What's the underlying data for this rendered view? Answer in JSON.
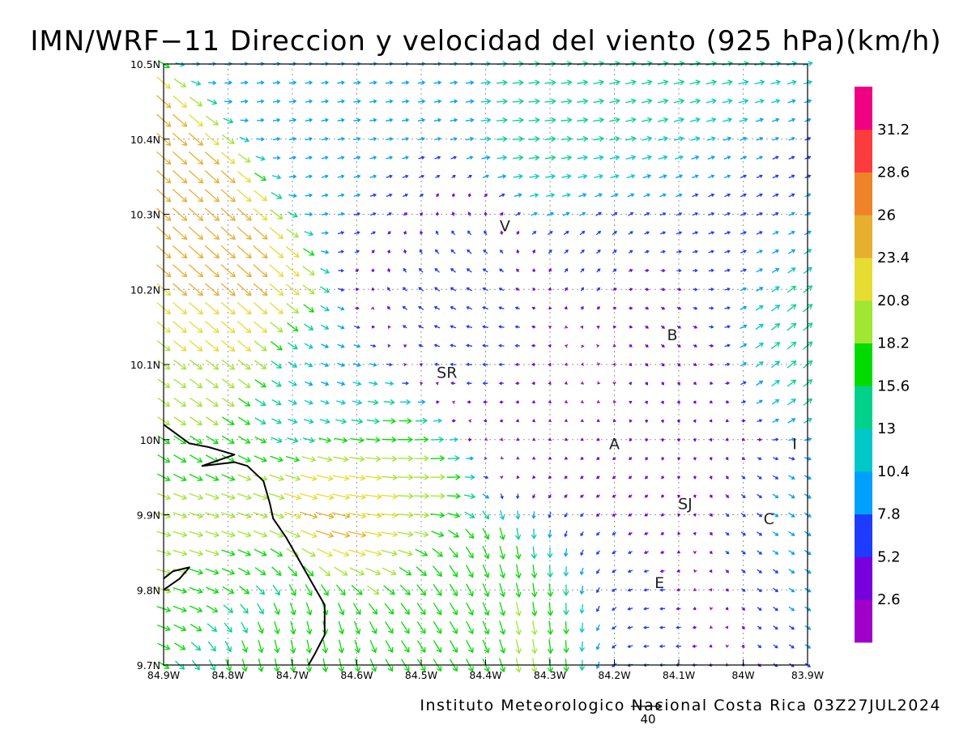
{
  "title": "IMN/WRF−11 Direccion y velocidad del viento (925 hPa)(km/h)",
  "credit": "Instituto Meteorologico Nacional Costa Rica  03Z27JUL2024",
  "reference_vector_label": "40",
  "axes": {
    "lon": [
      -84.9,
      -83.9
    ],
    "lat": [
      9.7,
      10.5
    ],
    "x_tick_values": [
      -84.9,
      -84.8,
      -84.7,
      -84.6,
      -84.5,
      -84.4,
      -84.3,
      -84.2,
      -84.1,
      -84.0,
      -83.9
    ],
    "x_tick_labels": [
      "84.9W",
      "84.8W",
      "84.7W",
      "84.6W",
      "84.5W",
      "84.4W",
      "84.3W",
      "84.2W",
      "84.1W",
      "84W",
      "83.9W"
    ],
    "y_tick_values": [
      10.5,
      10.4,
      10.3,
      10.2,
      10.1,
      10.0,
      9.9,
      9.8,
      9.7
    ],
    "y_tick_labels": [
      "10.5N",
      "10.4N",
      "10.3N",
      "10.2N",
      "10.1N",
      "10N",
      "9.9N",
      "9.8N",
      "9.7N"
    ],
    "grid": true
  },
  "colorbar": {
    "colors": [
      "#a000c8",
      "#7800dc",
      "#1e3cff",
      "#00a0ff",
      "#00c8c8",
      "#00d28c",
      "#00dc00",
      "#a0e632",
      "#e6dc32",
      "#e6af2d",
      "#f08228",
      "#fa3c3c",
      "#f00082"
    ],
    "labels": [
      "2.6",
      "5.2",
      "7.8",
      "10.4",
      "13",
      "15.6",
      "18.2",
      "20.8",
      "23.4",
      "26",
      "28.6",
      "31.2"
    ]
  },
  "places": [
    {
      "label": "V",
      "lon": -84.37,
      "lat": 10.285
    },
    {
      "label": "SR",
      "lon": -84.46,
      "lat": 10.09
    },
    {
      "label": "B",
      "lon": -84.11,
      "lat": 10.14
    },
    {
      "label": "A",
      "lon": -84.2,
      "lat": 9.995
    },
    {
      "label": "I",
      "lon": -83.92,
      "lat": 9.995
    },
    {
      "label": "SJ",
      "lon": -84.09,
      "lat": 9.915
    },
    {
      "label": "C",
      "lon": -83.96,
      "lat": 9.895
    },
    {
      "label": "E",
      "lon": -84.13,
      "lat": 9.81
    }
  ],
  "coastline": [
    [
      [
        -84.9,
        10.02
      ],
      [
        -84.86,
        9.995
      ],
      [
        -84.83,
        9.99
      ],
      [
        -84.79,
        9.98
      ],
      [
        -84.84,
        9.965
      ],
      [
        -84.79,
        9.97
      ],
      [
        -84.77,
        9.965
      ],
      [
        -84.745,
        9.945
      ],
      [
        -84.735,
        9.915
      ],
      [
        -84.73,
        9.895
      ],
      [
        -84.71,
        9.87
      ],
      [
        -84.69,
        9.84
      ],
      [
        -84.67,
        9.81
      ],
      [
        -84.65,
        9.78
      ],
      [
        -84.65,
        9.74
      ],
      [
        -84.665,
        9.715
      ],
      [
        -84.675,
        9.7
      ]
    ],
    [
      [
        -84.9,
        9.815
      ],
      [
        -84.885,
        9.825
      ],
      [
        -84.86,
        9.83
      ],
      [
        -84.875,
        9.815
      ],
      [
        -84.9,
        9.8
      ]
    ]
  ],
  "wind": {
    "units": "km/h",
    "reference_speed": 40,
    "grid_lon_min": -84.9,
    "grid_lon_step": 0.025,
    "grid_lon_count": 41,
    "grid_lat_min": 9.7,
    "grid_lat_step": 0.025,
    "grid_lat_count": 33,
    "regimes": [
      {
        "lon": -84.8,
        "lat": 10.17,
        "u": 18,
        "v": -16
      },
      {
        "lon": -84.84,
        "lat": 10.05,
        "u": 15,
        "v": -10
      },
      {
        "lon": -84.8,
        "lat": 9.86,
        "u": 18,
        "v": -5
      },
      {
        "lon": -84.62,
        "lat": 9.92,
        "u": 27,
        "v": -8
      },
      {
        "lon": -84.55,
        "lat": 9.95,
        "u": 18,
        "v": 2
      },
      {
        "lon": -84.65,
        "lat": 10.05,
        "u": 8,
        "v": -3
      },
      {
        "lon": -84.7,
        "lat": 9.75,
        "u": 3,
        "v": -17
      },
      {
        "lon": -84.45,
        "lat": 9.76,
        "u": 10,
        "v": -15
      },
      {
        "lon": -84.32,
        "lat": 9.77,
        "u": 2,
        "v": -19
      },
      {
        "lon": -84.55,
        "lat": 10.35,
        "u": 8,
        "v": 2
      },
      {
        "lon": -84.55,
        "lat": 10.48,
        "u": 9,
        "v": 1
      },
      {
        "lon": -84.3,
        "lat": 10.38,
        "u": 14,
        "v": 1
      },
      {
        "lon": -84.15,
        "lat": 10.47,
        "u": 13,
        "v": 3
      },
      {
        "lon": -84.45,
        "lat": 10.23,
        "u": -6,
        "v": 6
      },
      {
        "lon": -84.25,
        "lat": 10.24,
        "u": 4,
        "v": 5
      },
      {
        "lon": -84.05,
        "lat": 10.27,
        "u": 7,
        "v": 3
      },
      {
        "lon": -84.4,
        "lat": 10.14,
        "u": -8,
        "v": 0
      },
      {
        "lon": -84.3,
        "lat": 10.05,
        "u": -2,
        "v": -1
      },
      {
        "lon": -84.2,
        "lat": 9.9,
        "u": -4,
        "v": -3
      },
      {
        "lon": -84.15,
        "lat": 9.78,
        "u": -7,
        "v": 0
      },
      {
        "lon": -84.0,
        "lat": 9.85,
        "u": 4,
        "v": -3
      },
      {
        "lon": -83.95,
        "lat": 10.1,
        "u": 12,
        "v": 10
      },
      {
        "lon": -84.05,
        "lat": 10.02,
        "u": 0,
        "v": -4
      },
      {
        "lon": -83.92,
        "lat": 9.88,
        "u": 9,
        "v": -6
      },
      {
        "lon": -84.1,
        "lat": 10.15,
        "u": 4,
        "v": -4
      }
    ]
  }
}
